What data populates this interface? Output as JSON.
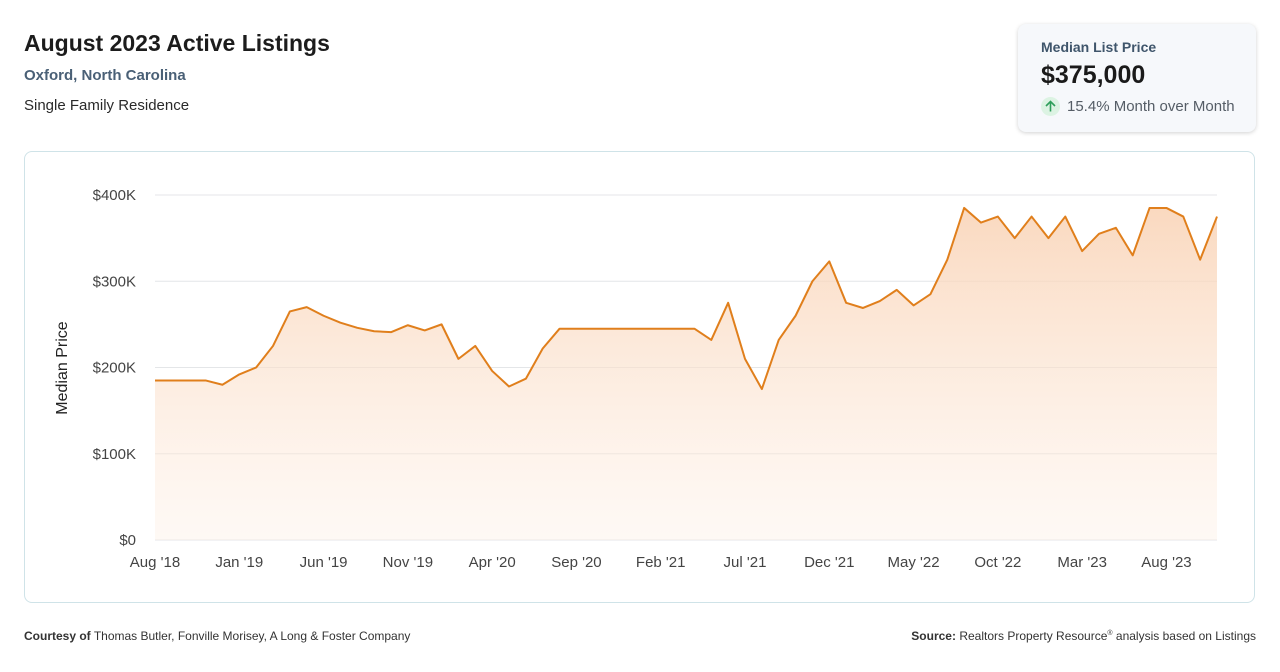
{
  "header": {
    "title": "August 2023 Active Listings",
    "location": "Oxford, North Carolina",
    "property_type": "Single Family Residence"
  },
  "stat_card": {
    "label": "Median List Price",
    "value": "$375,000",
    "change": "15.4% Month over Month",
    "change_direction": "up",
    "icon": "arrow-up-icon",
    "accent_color": "#2e9e5b"
  },
  "footer": {
    "courtesy_label": "Courtesy of",
    "courtesy_text": "Thomas Butler, Fonville Morisey, A Long & Foster Company",
    "source_label": "Source:",
    "source_text_1": "Realtors Property Resource",
    "source_mark": "®",
    "source_text_2": "analysis based on Listings"
  },
  "chart_data": {
    "type": "area",
    "ylabel": "Median Price",
    "xlabel": "",
    "ylim": [
      0,
      400000
    ],
    "y_ticks": [
      0,
      100000,
      200000,
      300000,
      400000
    ],
    "y_tick_labels": [
      "$0",
      "$100K",
      "$200K",
      "$300K",
      "$400K"
    ],
    "x_tick_labels": [
      "Aug '18",
      "Jan '19",
      "Jun '19",
      "Nov '19",
      "Apr '20",
      "Sep '20",
      "Feb '21",
      "Jul '21",
      "Dec '21",
      "May '22",
      "Oct '22",
      "Mar '23",
      "Aug '23"
    ],
    "x_tick_interval_months": 5,
    "line_color": "#e07f1c",
    "fill_color": "#f9d2b4",
    "grid": true,
    "series": [
      {
        "values": [
          185000,
          185000,
          185000,
          185000,
          180000,
          192000,
          200000,
          225000,
          265000,
          270000,
          260000,
          252000,
          246000,
          242000,
          241000,
          249000,
          243000,
          250000,
          210000,
          225000,
          196000,
          178000,
          187000,
          222000,
          245000,
          245000,
          245000,
          245000,
          245000,
          245000,
          245000,
          245000,
          245000,
          232000,
          275000,
          210000,
          175000,
          232000,
          260000,
          300000,
          323000,
          275000,
          269000,
          277000,
          290000,
          272000,
          285000,
          325000,
          385000,
          368000,
          375000,
          350000,
          375000,
          350000,
          375000,
          335000,
          355000,
          362000,
          330000,
          385000,
          385000,
          375000,
          325000,
          375000
        ]
      }
    ]
  }
}
